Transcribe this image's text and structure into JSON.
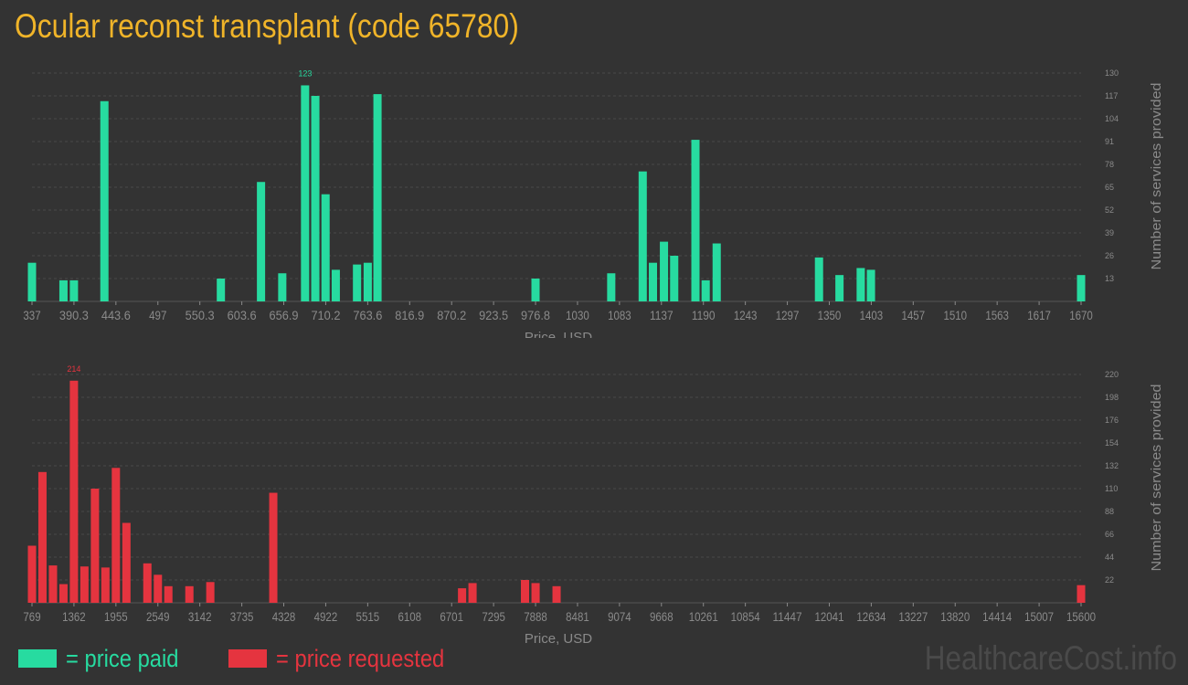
{
  "title": "Ocular reconst transplant (code 65780)",
  "colors": {
    "background": "#333333",
    "paid": "#27dba0",
    "requested": "#e5343f",
    "title": "#f0b429",
    "axis": "#8a8a8a",
    "grid": "#4a4a4a",
    "watermark": "#4a4a4a"
  },
  "legend": {
    "paid_label": "= price paid",
    "requested_label": "= price requested"
  },
  "watermark": "HealthcareCost.info",
  "chart_data": [
    {
      "type": "bar",
      "series_key": "paid",
      "xlabel": "Price, USD",
      "ylabel": "Number of services provided",
      "xlim": [
        337,
        1670
      ],
      "ylim": [
        0,
        130
      ],
      "x_ticks": [
        "337",
        "390.3",
        "443.6",
        "497",
        "550.3",
        "603.6",
        "656.9",
        "710.2",
        "763.6",
        "816.9",
        "870.2",
        "923.5",
        "976.8",
        "1030",
        "1083",
        "1137",
        "1190",
        "1243",
        "1297",
        "1350",
        "1403",
        "1457",
        "1510",
        "1563",
        "1617",
        "1670"
      ],
      "y_ticks": [
        "13",
        "26",
        "39",
        "52",
        "65",
        "78",
        "91",
        "104",
        "117",
        "130"
      ],
      "max_label": "123",
      "bars": [
        {
          "x": 337,
          "y": 22
        },
        {
          "x": 377,
          "y": 12
        },
        {
          "x": 390.3,
          "y": 12
        },
        {
          "x": 429,
          "y": 114
        },
        {
          "x": 577,
          "y": 13
        },
        {
          "x": 628,
          "y": 68
        },
        {
          "x": 655,
          "y": 16
        },
        {
          "x": 684,
          "y": 123
        },
        {
          "x": 697,
          "y": 117
        },
        {
          "x": 710,
          "y": 61
        },
        {
          "x": 723,
          "y": 18
        },
        {
          "x": 750,
          "y": 21
        },
        {
          "x": 763.6,
          "y": 22
        },
        {
          "x": 776,
          "y": 118
        },
        {
          "x": 976.8,
          "y": 13
        },
        {
          "x": 1073,
          "y": 16
        },
        {
          "x": 1113,
          "y": 74
        },
        {
          "x": 1126,
          "y": 22
        },
        {
          "x": 1140,
          "y": 34
        },
        {
          "x": 1153,
          "y": 26
        },
        {
          "x": 1180,
          "y": 92
        },
        {
          "x": 1193,
          "y": 12
        },
        {
          "x": 1207,
          "y": 33
        },
        {
          "x": 1337,
          "y": 25
        },
        {
          "x": 1363,
          "y": 15
        },
        {
          "x": 1390,
          "y": 19
        },
        {
          "x": 1403,
          "y": 18
        },
        {
          "x": 1670,
          "y": 15
        }
      ]
    },
    {
      "type": "bar",
      "series_key": "requested",
      "xlabel": "Price, USD",
      "ylabel": "Number of services provided",
      "xlim": [
        769,
        15600
      ],
      "ylim": [
        0,
        220
      ],
      "x_ticks": [
        "769",
        "1362",
        "1955",
        "2549",
        "3142",
        "3735",
        "4328",
        "4922",
        "5515",
        "6108",
        "6701",
        "7295",
        "7888",
        "8481",
        "9074",
        "9668",
        "10261",
        "10854",
        "11447",
        "12041",
        "12634",
        "13227",
        "13820",
        "14414",
        "15007",
        "15600"
      ],
      "y_ticks": [
        "22",
        "44",
        "66",
        "88",
        "110",
        "132",
        "154",
        "176",
        "198",
        "220"
      ],
      "max_label": "214",
      "bars": [
        {
          "x": 769,
          "y": 55
        },
        {
          "x": 917,
          "y": 126
        },
        {
          "x": 1066,
          "y": 36
        },
        {
          "x": 1214,
          "y": 18
        },
        {
          "x": 1362,
          "y": 214
        },
        {
          "x": 1510,
          "y": 35
        },
        {
          "x": 1659,
          "y": 110
        },
        {
          "x": 1807,
          "y": 34
        },
        {
          "x": 1955,
          "y": 130
        },
        {
          "x": 2104,
          "y": 77
        },
        {
          "x": 2400,
          "y": 38
        },
        {
          "x": 2549,
          "y": 27
        },
        {
          "x": 2697,
          "y": 16
        },
        {
          "x": 2994,
          "y": 16
        },
        {
          "x": 3290,
          "y": 20
        },
        {
          "x": 4180,
          "y": 106
        },
        {
          "x": 6849,
          "y": 14
        },
        {
          "x": 6997,
          "y": 19
        },
        {
          "x": 7739,
          "y": 22
        },
        {
          "x": 7888,
          "y": 19
        },
        {
          "x": 8185,
          "y": 16
        },
        {
          "x": 15600,
          "y": 17
        }
      ]
    }
  ]
}
